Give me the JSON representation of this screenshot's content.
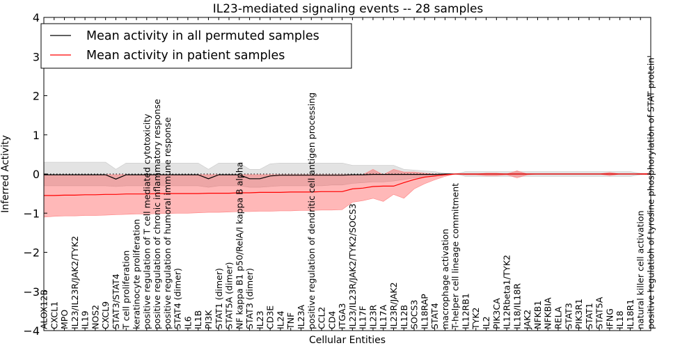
{
  "chart_data": {
    "type": "line",
    "title": "IL23-mediated signaling events -- 28 samples",
    "xlabel": "Cellular Entities",
    "ylabel": "Inferred Activity",
    "ylim": [
      -4,
      4
    ],
    "yticks": [
      "4",
      "3",
      "2",
      "1",
      "0",
      "−1",
      "−2",
      "−3",
      "−4"
    ],
    "ytick_values": [
      4,
      3,
      2,
      1,
      0,
      -1,
      -2,
      -3,
      -4
    ],
    "grid": false,
    "legend_position": "top-left",
    "legend": [
      {
        "label": "Mean activity in all permuted samples",
        "color": "#000000"
      },
      {
        "label": "Mean activity in patient samples",
        "color": "#ff0000"
      }
    ],
    "categories": [
      "ALOX12B",
      "CXCL1",
      "MPO",
      "IL23/IL23R/JAK2/TYK2",
      "IL19",
      "NOS2",
      "CXCL9",
      "STAT3/STAT4",
      "T cell proliferation",
      "keratinocyte proliferation",
      "positive regulation of T cell mediated cytotoxicity",
      "positive regulation of chronic inflammatory response",
      "positive regulation of humoral immune response",
      "STAT4 (dimer)",
      "IL6",
      "IL1B",
      "PI3K",
      "STAT1 (dimer)",
      "STAT5A (dimer)",
      "NF kappa B1 p50/RelA/I kappa B alpha",
      "STAT3 (dimer)",
      "IL23",
      "CD3E",
      "IL24",
      "TNF",
      "IL23A",
      "positive regulation of dendritic cell antigen processing",
      "CCL2",
      "CD4",
      "ITGA3",
      "IL23/IL23R/JAK2/TYK2/SOCS3",
      "IL17F",
      "IL23R",
      "IL17A",
      "IL23R/JAK2",
      "IL12B",
      "SOCS3",
      "IL18RAP",
      "STAT4",
      "macrophage activation",
      "T-helper cell lineage commitment",
      "IL12RB1",
      "TYK2",
      "IL2",
      "PIK3CA",
      "IL12Rbeta1/TYK2",
      "IL18/IL18R",
      "JAK2",
      "NFKB1",
      "NFKBIA",
      "RELA",
      "STAT3",
      "PIK3R1",
      "STAT1",
      "STAT5A",
      "IFNG",
      "IL18",
      "IL18R1",
      "natural killer cell activation",
      "positive regulation of tyrosine phosphorylation of STAT protein"
    ],
    "series": [
      {
        "name": "Mean activity in all permuted samples",
        "color": "#000000",
        "values": [
          -0.02,
          -0.02,
          -0.02,
          -0.02,
          -0.02,
          -0.02,
          -0.02,
          -0.13,
          -0.02,
          -0.02,
          -0.02,
          -0.02,
          -0.02,
          -0.02,
          -0.02,
          -0.02,
          -0.12,
          -0.02,
          -0.02,
          -0.02,
          -0.12,
          -0.12,
          -0.05,
          -0.03,
          -0.03,
          -0.03,
          -0.03,
          -0.03,
          -0.03,
          -0.03,
          -0.02,
          -0.02,
          -0.01,
          -0.01,
          -0.01,
          -0.01,
          -0.01,
          -0.01,
          -0.01,
          0.0,
          0.0,
          0.0,
          0.0,
          0.0,
          0.0,
          0.0,
          0.0,
          0.0,
          0.0,
          0.0,
          0.0,
          0.0,
          0.0,
          0.0,
          0.0,
          0.0,
          0.0,
          0.0,
          0.0,
          0.0
        ],
        "band_upper": [
          0.3,
          0.3,
          0.3,
          0.3,
          0.3,
          0.3,
          0.3,
          0.12,
          0.28,
          0.28,
          0.28,
          0.28,
          0.28,
          0.28,
          0.28,
          0.28,
          0.12,
          0.28,
          0.28,
          0.28,
          0.12,
          0.12,
          0.26,
          0.28,
          0.28,
          0.28,
          0.28,
          0.28,
          0.28,
          0.28,
          0.22,
          0.22,
          0.22,
          0.22,
          0.22,
          0.12,
          0.1,
          0.08,
          0.06,
          0.02,
          0.0,
          0.06,
          0.06,
          0.06,
          0.06,
          0.06,
          0.06,
          0.06,
          0.06,
          0.06,
          0.06,
          0.06,
          0.06,
          0.06,
          0.06,
          0.06,
          0.06,
          0.06,
          0.02,
          0.0
        ],
        "band_lower": [
          -0.3,
          -0.3,
          -0.3,
          -0.3,
          -0.3,
          -0.3,
          -0.3,
          -0.32,
          -0.3,
          -0.3,
          -0.3,
          -0.3,
          -0.3,
          -0.3,
          -0.3,
          -0.3,
          -0.34,
          -0.3,
          -0.3,
          -0.3,
          -0.34,
          -0.34,
          -0.32,
          -0.3,
          -0.3,
          -0.3,
          -0.3,
          -0.3,
          -0.28,
          -0.28,
          -0.24,
          -0.22,
          -0.2,
          -0.2,
          -0.18,
          -0.14,
          -0.1,
          -0.08,
          -0.06,
          -0.02,
          0.0,
          -0.06,
          -0.06,
          -0.06,
          -0.06,
          -0.06,
          -0.06,
          -0.06,
          -0.06,
          -0.06,
          -0.06,
          -0.06,
          -0.06,
          -0.06,
          -0.06,
          -0.06,
          -0.06,
          -0.06,
          -0.02,
          0.0
        ]
      },
      {
        "name": "Mean activity in patient samples",
        "color": "#ff0000",
        "values": [
          -0.55,
          -0.55,
          -0.54,
          -0.54,
          -0.53,
          -0.53,
          -0.52,
          -0.52,
          -0.51,
          -0.51,
          -0.51,
          -0.5,
          -0.5,
          -0.5,
          -0.5,
          -0.5,
          -0.49,
          -0.49,
          -0.49,
          -0.48,
          -0.48,
          -0.47,
          -0.47,
          -0.47,
          -0.46,
          -0.46,
          -0.46,
          -0.45,
          -0.45,
          -0.45,
          -0.38,
          -0.36,
          -0.32,
          -0.31,
          -0.31,
          -0.22,
          -0.14,
          -0.08,
          -0.05,
          -0.02,
          0.0,
          0.0,
          0.0,
          0.0,
          0.0,
          0.0,
          0.0,
          0.0,
          0.0,
          0.0,
          0.0,
          0.0,
          0.0,
          0.0,
          0.0,
          0.0,
          0.0,
          0.0,
          0.0,
          0.0
        ],
        "band_upper": [
          -0.02,
          -0.02,
          -0.02,
          -0.02,
          -0.02,
          -0.02,
          -0.02,
          -0.02,
          -0.02,
          -0.02,
          -0.02,
          -0.02,
          -0.02,
          -0.02,
          -0.02,
          -0.02,
          -0.02,
          -0.02,
          -0.02,
          -0.02,
          -0.02,
          -0.02,
          -0.02,
          -0.02,
          -0.02,
          -0.02,
          -0.02,
          -0.02,
          -0.02,
          -0.02,
          -0.02,
          -0.02,
          0.12,
          -0.02,
          0.12,
          0.05,
          0.05,
          0.02,
          0.0,
          0.0,
          0.0,
          0.0,
          0.0,
          0.02,
          0.02,
          0.0,
          0.08,
          0.0,
          0.0,
          0.0,
          0.0,
          0.0,
          0.0,
          0.0,
          0.0,
          0.04,
          0.0,
          0.0,
          0.01,
          0.02
        ],
        "band_lower": [
          -1.1,
          -1.08,
          -1.07,
          -1.07,
          -1.06,
          -1.06,
          -1.05,
          -1.04,
          -1.03,
          -1.02,
          -1.02,
          -1.01,
          -1.01,
          -1.0,
          -1.0,
          -0.99,
          -0.98,
          -0.98,
          -0.97,
          -0.96,
          -0.96,
          -0.95,
          -0.95,
          -0.94,
          -0.94,
          -0.93,
          -0.93,
          -0.92,
          -0.92,
          -0.91,
          -0.72,
          -0.68,
          -0.62,
          -0.7,
          -0.52,
          -0.62,
          -0.38,
          -0.25,
          -0.15,
          -0.06,
          0.0,
          -0.02,
          -0.02,
          -0.04,
          -0.04,
          -0.02,
          -0.1,
          -0.02,
          0.0,
          0.0,
          0.0,
          0.0,
          0.0,
          0.0,
          0.0,
          -0.04,
          0.0,
          0.0,
          -0.01,
          -0.02
        ]
      }
    ]
  }
}
